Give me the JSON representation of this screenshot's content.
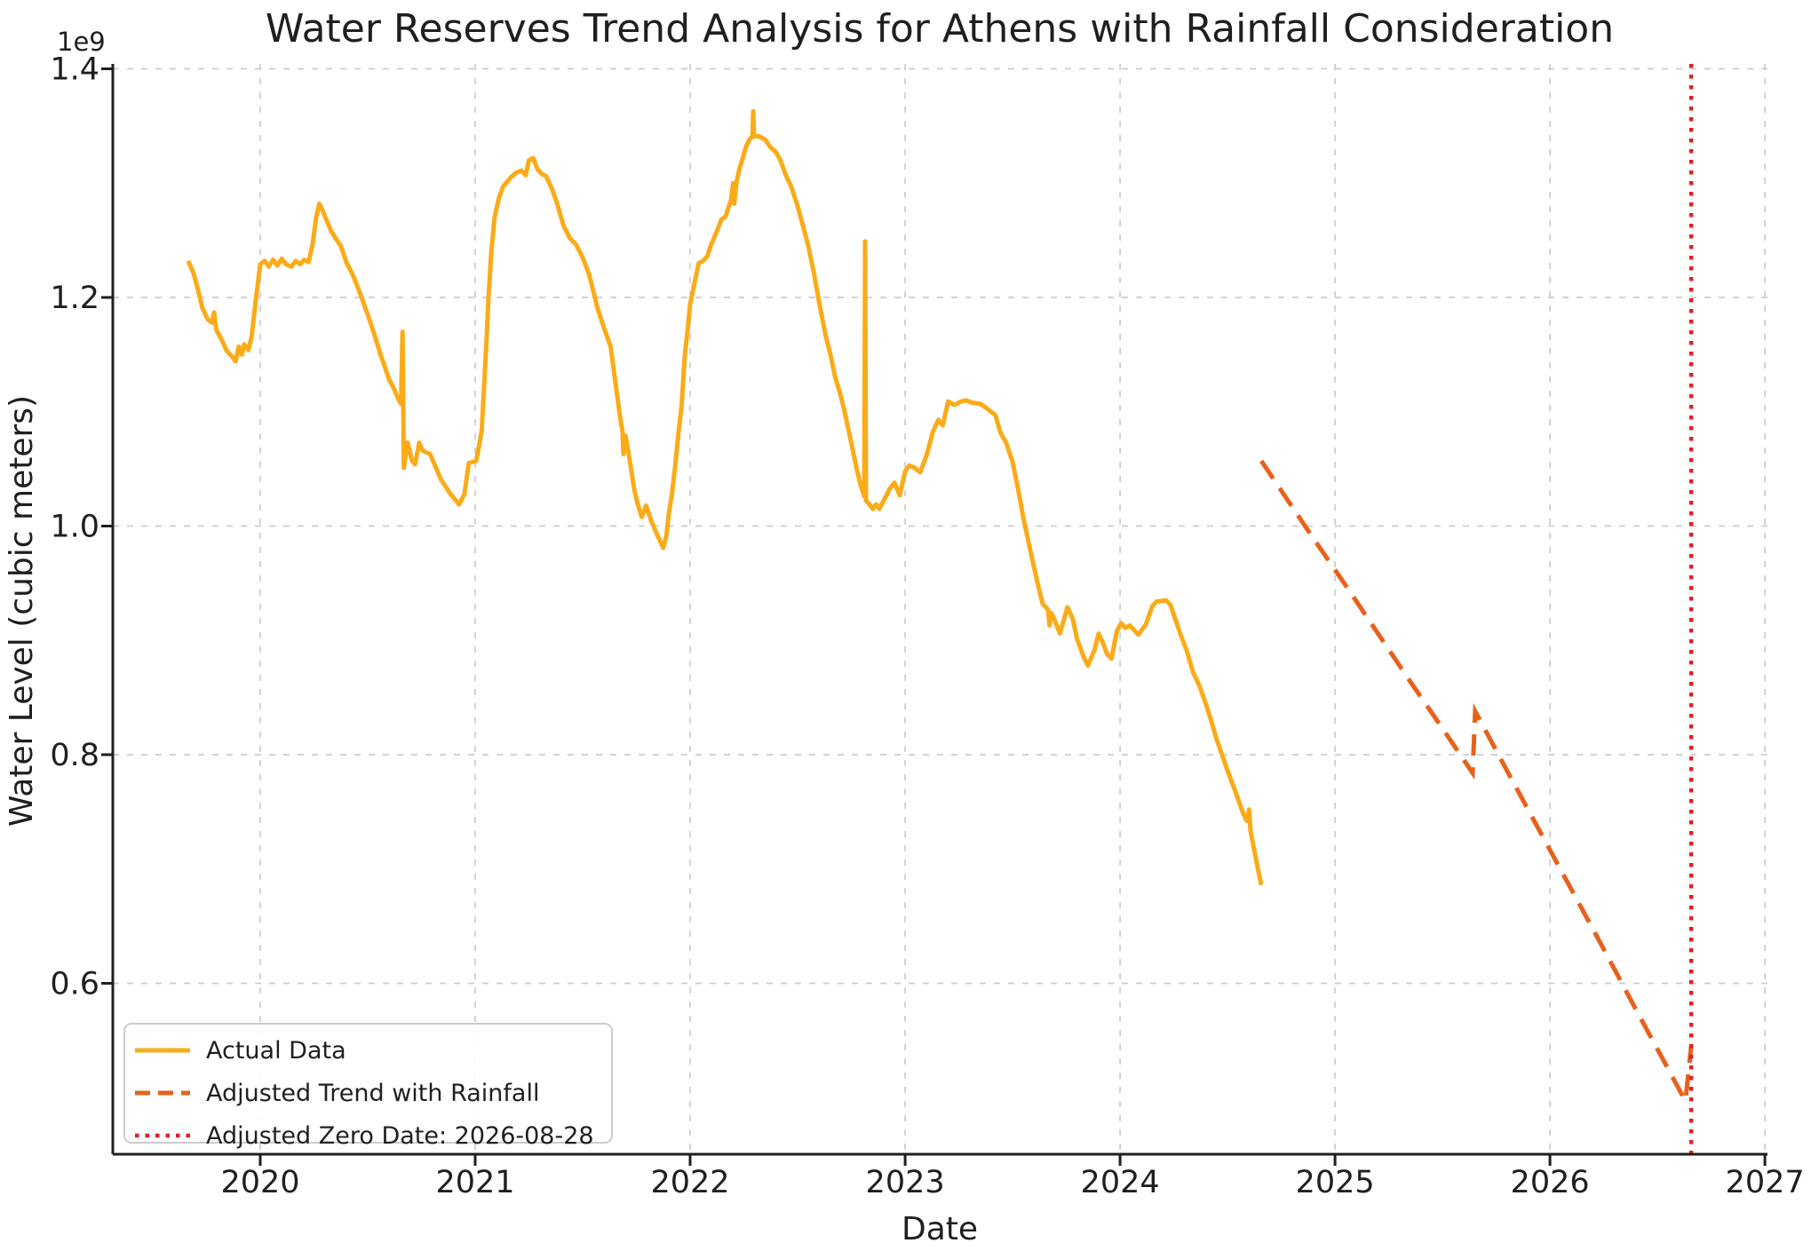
{
  "figure": {
    "title": "Water Reserves Trend Analysis for Athens with Rainfall Consideration",
    "xlabel": "Date",
    "ylabel": "Water Level (cubic meters)",
    "offset_text": "1e9"
  },
  "legend": {
    "items": [
      {
        "label": "Actual Data",
        "color": "#fbab17",
        "style": "solid"
      },
      {
        "label": "Adjusted Trend with Rainfall",
        "color": "#e8611c",
        "style": "dashed"
      },
      {
        "label": "Adjusted Zero Date: 2026-08-28",
        "color": "#de2121",
        "style": "dotted"
      }
    ]
  },
  "chart_data": {
    "type": "line",
    "title": "Water Reserves Trend Analysis for Athens with Rainfall Consideration",
    "xlabel": "Date",
    "ylabel": "Water Level (cubic meters)",
    "y_unit_multiplier": "1e9",
    "grid": true,
    "legend_position": "lower left",
    "x_ticks": [
      2020,
      2021,
      2022,
      2023,
      2024,
      2025,
      2026,
      2027
    ],
    "y_ticks": [
      0.6,
      0.8,
      1.0,
      1.2,
      1.4
    ],
    "xlim": [
      2019.314,
      2027.012
    ],
    "ylim": [
      0.4505,
      1.4043
    ],
    "zero_date": {
      "label": "Adjusted Zero Date: 2026-08-28",
      "x": 2026.657,
      "date": "2026-08-28",
      "color": "#de2121"
    },
    "series": [
      {
        "name": "Actual Data",
        "color": "#fbab17",
        "line_style": "solid",
        "points": [
          [
            2019.665,
            1.232
          ],
          [
            2019.69,
            1.221
          ],
          [
            2019.71,
            1.207
          ],
          [
            2019.73,
            1.191
          ],
          [
            2019.755,
            1.181
          ],
          [
            2019.775,
            1.178
          ],
          [
            2019.785,
            1.187
          ],
          [
            2019.795,
            1.172
          ],
          [
            2019.82,
            1.163
          ],
          [
            2019.845,
            1.153
          ],
          [
            2019.87,
            1.148
          ],
          [
            2019.885,
            1.144
          ],
          [
            2019.9,
            1.157
          ],
          [
            2019.915,
            1.15
          ],
          [
            2019.925,
            1.159
          ],
          [
            2019.945,
            1.154
          ],
          [
            2019.96,
            1.166
          ],
          [
            2019.98,
            1.199
          ],
          [
            2020.0,
            1.229
          ],
          [
            2020.02,
            1.232
          ],
          [
            2020.04,
            1.227
          ],
          [
            2020.06,
            1.233
          ],
          [
            2020.08,
            1.228
          ],
          [
            2020.1,
            1.234
          ],
          [
            2020.12,
            1.229
          ],
          [
            2020.145,
            1.227
          ],
          [
            2020.165,
            1.232
          ],
          [
            2020.185,
            1.229
          ],
          [
            2020.205,
            1.233
          ],
          [
            2020.225,
            1.231
          ],
          [
            2020.245,
            1.248
          ],
          [
            2020.26,
            1.27
          ],
          [
            2020.275,
            1.282
          ],
          [
            2020.29,
            1.276
          ],
          [
            2020.31,
            1.267
          ],
          [
            2020.33,
            1.258
          ],
          [
            2020.35,
            1.252
          ],
          [
            2020.375,
            1.245
          ],
          [
            2020.4,
            1.231
          ],
          [
            2020.43,
            1.22
          ],
          [
            2020.46,
            1.206
          ],
          [
            2020.5,
            1.185
          ],
          [
            2020.53,
            1.168
          ],
          [
            2020.56,
            1.15
          ],
          [
            2020.58,
            1.139
          ],
          [
            2020.6,
            1.128
          ],
          [
            2020.62,
            1.121
          ],
          [
            2020.64,
            1.112
          ],
          [
            2020.655,
            1.107
          ],
          [
            2020.662,
            1.17
          ],
          [
            2020.668,
            1.051
          ],
          [
            2020.685,
            1.073
          ],
          [
            2020.705,
            1.058
          ],
          [
            2020.72,
            1.054
          ],
          [
            2020.74,
            1.073
          ],
          [
            2020.755,
            1.066
          ],
          [
            2020.79,
            1.063
          ],
          [
            2020.84,
            1.041
          ],
          [
            2020.885,
            1.028
          ],
          [
            2020.925,
            1.019
          ],
          [
            2020.95,
            1.028
          ],
          [
            2020.97,
            1.055
          ],
          [
            2021.005,
            1.057
          ],
          [
            2021.03,
            1.083
          ],
          [
            2021.042,
            1.125
          ],
          [
            2021.052,
            1.16
          ],
          [
            2021.062,
            1.2
          ],
          [
            2021.075,
            1.24
          ],
          [
            2021.09,
            1.27
          ],
          [
            2021.11,
            1.287
          ],
          [
            2021.13,
            1.297
          ],
          [
            2021.165,
            1.305
          ],
          [
            2021.19,
            1.309
          ],
          [
            2021.215,
            1.311
          ],
          [
            2021.235,
            1.307
          ],
          [
            2021.25,
            1.32
          ],
          [
            2021.27,
            1.322
          ],
          [
            2021.29,
            1.312
          ],
          [
            2021.31,
            1.308
          ],
          [
            2021.33,
            1.306
          ],
          [
            2021.355,
            1.296
          ],
          [
            2021.38,
            1.283
          ],
          [
            2021.41,
            1.263
          ],
          [
            2021.44,
            1.252
          ],
          [
            2021.47,
            1.246
          ],
          [
            2021.5,
            1.235
          ],
          [
            2021.53,
            1.22
          ],
          [
            2021.57,
            1.19
          ],
          [
            2021.6,
            1.173
          ],
          [
            2021.63,
            1.157
          ],
          [
            2021.655,
            1.122
          ],
          [
            2021.675,
            1.094
          ],
          [
            2021.685,
            1.083
          ],
          [
            2021.69,
            1.063
          ],
          [
            2021.7,
            1.079
          ],
          [
            2021.72,
            1.056
          ],
          [
            2021.74,
            1.032
          ],
          [
            2021.755,
            1.02
          ],
          [
            2021.775,
            1.008
          ],
          [
            2021.795,
            1.018
          ],
          [
            2021.82,
            1.004
          ],
          [
            2021.845,
            0.993
          ],
          [
            2021.875,
            0.981
          ],
          [
            2021.89,
            0.992
          ],
          [
            2021.9,
            1.01
          ],
          [
            2021.915,
            1.028
          ],
          [
            2021.93,
            1.052
          ],
          [
            2021.945,
            1.08
          ],
          [
            2021.96,
            1.105
          ],
          [
            2021.975,
            1.149
          ],
          [
            2021.99,
            1.175
          ],
          [
            2022.0,
            1.194
          ],
          [
            2022.025,
            1.217
          ],
          [
            2022.04,
            1.23
          ],
          [
            2022.06,
            1.232
          ],
          [
            2022.08,
            1.236
          ],
          [
            2022.095,
            1.245
          ],
          [
            2022.12,
            1.256
          ],
          [
            2022.145,
            1.268
          ],
          [
            2022.165,
            1.271
          ],
          [
            2022.19,
            1.285
          ],
          [
            2022.2,
            1.3
          ],
          [
            2022.205,
            1.282
          ],
          [
            2022.215,
            1.3
          ],
          [
            2022.23,
            1.313
          ],
          [
            2022.245,
            1.322
          ],
          [
            2022.26,
            1.332
          ],
          [
            2022.275,
            1.338
          ],
          [
            2022.29,
            1.341
          ],
          [
            2022.293,
            1.363
          ],
          [
            2022.297,
            1.341
          ],
          [
            2022.32,
            1.341
          ],
          [
            2022.35,
            1.338
          ],
          [
            2022.375,
            1.331
          ],
          [
            2022.4,
            1.327
          ],
          [
            2022.42,
            1.32
          ],
          [
            2022.445,
            1.307
          ],
          [
            2022.47,
            1.297
          ],
          [
            2022.5,
            1.28
          ],
          [
            2022.52,
            1.266
          ],
          [
            2022.55,
            1.245
          ],
          [
            2022.575,
            1.222
          ],
          [
            2022.6,
            1.196
          ],
          [
            2022.63,
            1.167
          ],
          [
            2022.655,
            1.148
          ],
          [
            2022.675,
            1.13
          ],
          [
            2022.695,
            1.118
          ],
          [
            2022.715,
            1.103
          ],
          [
            2022.745,
            1.077
          ],
          [
            2022.77,
            1.054
          ],
          [
            2022.79,
            1.038
          ],
          [
            2022.81,
            1.026
          ],
          [
            2022.814,
            1.249
          ],
          [
            2022.818,
            1.022
          ],
          [
            2022.83,
            1.02
          ],
          [
            2022.85,
            1.015
          ],
          [
            2022.865,
            1.019
          ],
          [
            2022.88,
            1.015
          ],
          [
            2022.93,
            1.033
          ],
          [
            2022.95,
            1.038
          ],
          [
            2022.975,
            1.027
          ],
          [
            2023.0,
            1.048
          ],
          [
            2023.02,
            1.053
          ],
          [
            2023.045,
            1.051
          ],
          [
            2023.07,
            1.047
          ],
          [
            2023.1,
            1.062
          ],
          [
            2023.13,
            1.083
          ],
          [
            2023.155,
            1.093
          ],
          [
            2023.175,
            1.088
          ],
          [
            2023.2,
            1.109
          ],
          [
            2023.23,
            1.106
          ],
          [
            2023.26,
            1.109
          ],
          [
            2023.285,
            1.11
          ],
          [
            2023.31,
            1.108
          ],
          [
            2023.35,
            1.107
          ],
          [
            2023.38,
            1.103
          ],
          [
            2023.42,
            1.097
          ],
          [
            2023.445,
            1.081
          ],
          [
            2023.47,
            1.073
          ],
          [
            2023.5,
            1.056
          ],
          [
            2023.525,
            1.033
          ],
          [
            2023.55,
            1.007
          ],
          [
            2023.58,
            0.981
          ],
          [
            2023.61,
            0.955
          ],
          [
            2023.64,
            0.932
          ],
          [
            2023.665,
            0.927
          ],
          [
            2023.672,
            0.913
          ],
          [
            2023.68,
            0.924
          ],
          [
            2023.695,
            0.918
          ],
          [
            2023.72,
            0.906
          ],
          [
            2023.755,
            0.929
          ],
          [
            2023.78,
            0.919
          ],
          [
            2023.8,
            0.901
          ],
          [
            2023.83,
            0.886
          ],
          [
            2023.85,
            0.878
          ],
          [
            2023.88,
            0.891
          ],
          [
            2023.9,
            0.906
          ],
          [
            2023.92,
            0.898
          ],
          [
            2023.94,
            0.888
          ],
          [
            2023.96,
            0.884
          ],
          [
            2023.985,
            0.908
          ],
          [
            2024.005,
            0.915
          ],
          [
            2024.025,
            0.911
          ],
          [
            2024.045,
            0.913
          ],
          [
            2024.065,
            0.909
          ],
          [
            2024.085,
            0.905
          ],
          [
            2024.12,
            0.914
          ],
          [
            2024.15,
            0.93
          ],
          [
            2024.17,
            0.934
          ],
          [
            2024.215,
            0.935
          ],
          [
            2024.235,
            0.931
          ],
          [
            2024.26,
            0.917
          ],
          [
            2024.28,
            0.906
          ],
          [
            2024.31,
            0.891
          ],
          [
            2024.34,
            0.872
          ],
          [
            2024.37,
            0.86
          ],
          [
            2024.4,
            0.844
          ],
          [
            2024.425,
            0.829
          ],
          [
            2024.45,
            0.813
          ],
          [
            2024.48,
            0.797
          ],
          [
            2024.51,
            0.781
          ],
          [
            2024.54,
            0.766
          ],
          [
            2024.57,
            0.75
          ],
          [
            2024.59,
            0.742
          ],
          [
            2024.6,
            0.752
          ],
          [
            2024.607,
            0.733
          ],
          [
            2024.625,
            0.716
          ],
          [
            2024.64,
            0.701
          ],
          [
            2024.657,
            0.686
          ]
        ]
      },
      {
        "name": "Adjusted Trend with Rainfall",
        "color": "#e8611c",
        "line_style": "dashed",
        "points": [
          [
            2024.657,
            1.057
          ],
          [
            2024.75,
            1.031
          ],
          [
            2024.9,
            0.989
          ],
          [
            2025.05,
            0.948
          ],
          [
            2025.2,
            0.906
          ],
          [
            2025.35,
            0.864
          ],
          [
            2025.5,
            0.823
          ],
          [
            2025.64,
            0.784
          ],
          [
            2025.652,
            0.838
          ],
          [
            2025.8,
            0.786
          ],
          [
            2025.95,
            0.734
          ],
          [
            2026.1,
            0.682
          ],
          [
            2026.25,
            0.63
          ],
          [
            2026.4,
            0.577
          ],
          [
            2026.55,
            0.525
          ],
          [
            2026.63,
            0.497
          ],
          [
            2026.657,
            0.545
          ]
        ]
      }
    ]
  }
}
